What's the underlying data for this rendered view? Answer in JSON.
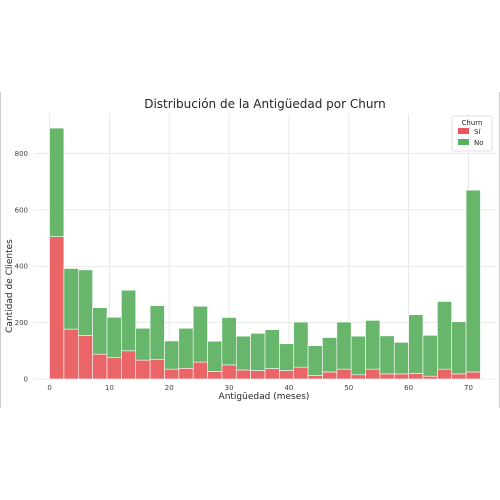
{
  "chart_data": {
    "type": "bar",
    "stacked": true,
    "title": "Distribución de la Antigüedad por Churn",
    "xlabel": "Antigüedad (meses)",
    "ylabel": "Cantidad de Clientes",
    "xlim": [
      -2.6,
      74.6
    ],
    "ylim": [
      0,
      940
    ],
    "x_ticks": [
      "0",
      "10",
      "20",
      "30",
      "40",
      "50",
      "60",
      "70"
    ],
    "y_ticks": [
      "0",
      "200",
      "400",
      "600",
      "800"
    ],
    "grid": true,
    "legend": {
      "title": "Churn",
      "position": "top-right"
    },
    "bin_edges": [
      0,
      2.4,
      4.8,
      7.2,
      9.6,
      12,
      14.4,
      16.8,
      19.2,
      21.6,
      24,
      26.4,
      28.8,
      31.2,
      33.6,
      36,
      38.4,
      40.8,
      43.2,
      45.6,
      48,
      50.4,
      52.8,
      55.2,
      57.6,
      60,
      62.4,
      64.8,
      67.2,
      69.6,
      72
    ],
    "series": [
      {
        "name": "Sí",
        "color": "#e8585b",
        "values": [
          505,
          177,
          155,
          88,
          77,
          100,
          67,
          70,
          35,
          38,
          60,
          27,
          50,
          32,
          30,
          37,
          30,
          42,
          13,
          25,
          35,
          15,
          35,
          18,
          18,
          20,
          10,
          35,
          18,
          25
        ]
      },
      {
        "name": "No",
        "color": "#5ab05f",
        "values": [
          385,
          215,
          232,
          165,
          142,
          215,
          113,
          190,
          100,
          142,
          198,
          107,
          168,
          120,
          132,
          138,
          95,
          160,
          105,
          122,
          167,
          137,
          173,
          135,
          112,
          208,
          145,
          240,
          185,
          645
        ]
      }
    ]
  }
}
